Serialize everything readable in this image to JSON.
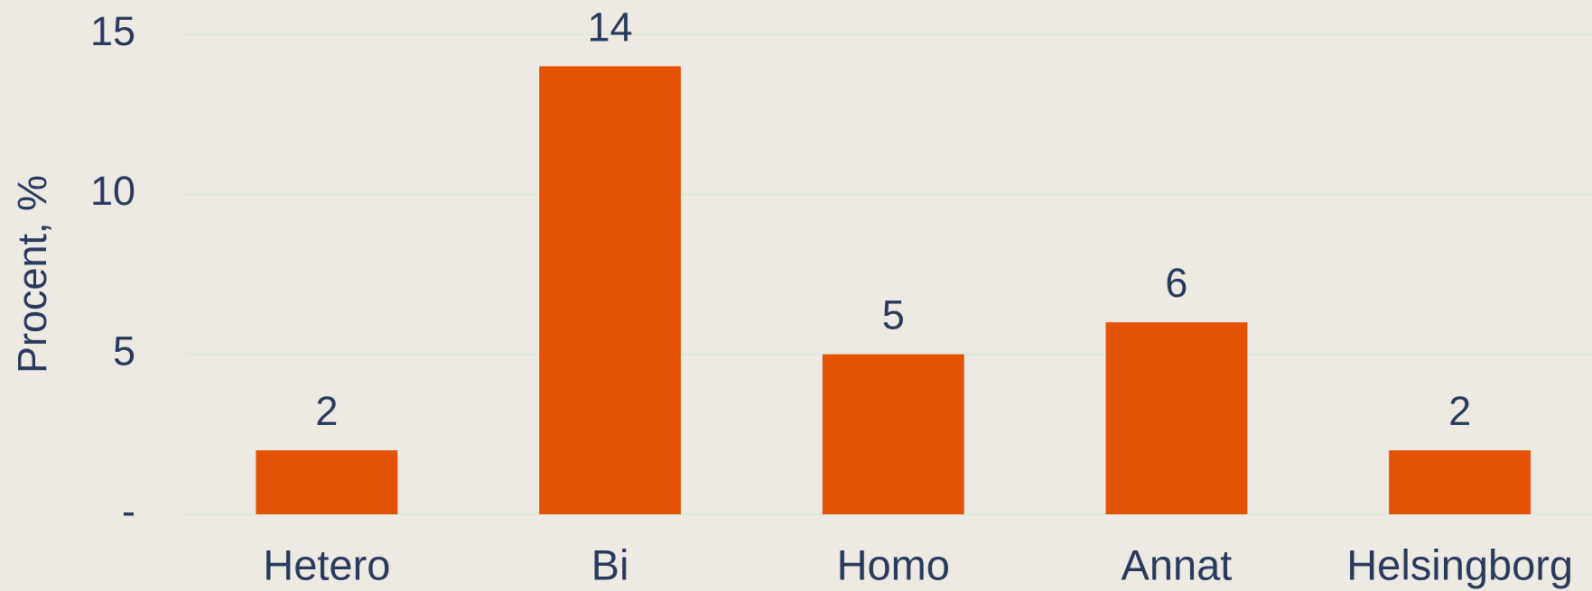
{
  "chart_data": {
    "type": "bar",
    "y_axis_label": "Procent, %",
    "categories": [
      "Hetero",
      "Bi",
      "Homo",
      "Annat",
      "Helsingborg"
    ],
    "values": [
      2,
      14,
      5,
      6,
      2
    ],
    "color": "#e35205",
    "ylim": [
      0,
      15
    ],
    "yticks": [
      {
        "value": 0,
        "label": "-"
      },
      5,
      10,
      15
    ],
    "grid": true
  }
}
